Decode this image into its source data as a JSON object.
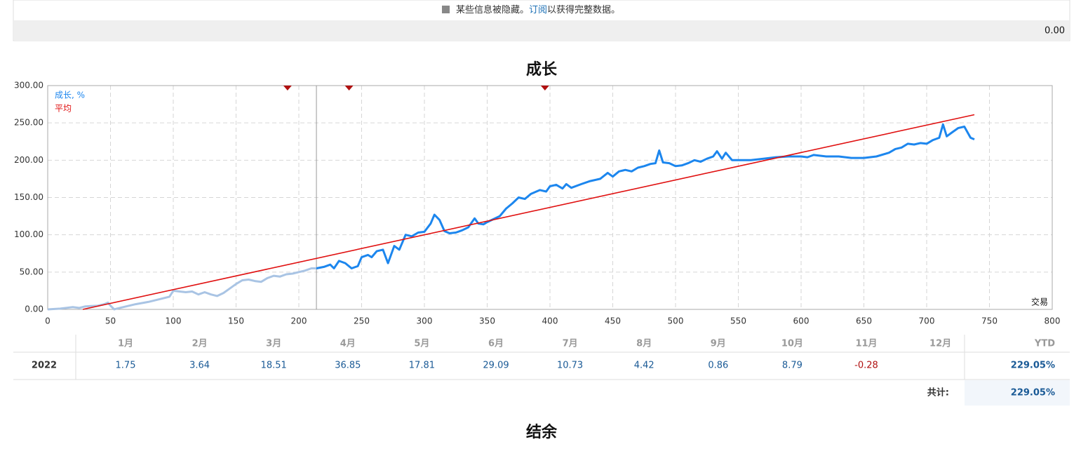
{
  "notice": {
    "before": "某些信息被隐藏。",
    "link": "订阅",
    "after": "以获得完整数据。",
    "value": "0.00"
  },
  "chart_data": {
    "type": "line",
    "title": "成长",
    "x_label": "交易",
    "xlim": [
      0,
      800
    ],
    "xticks": [
      0,
      50,
      100,
      150,
      200,
      250,
      300,
      350,
      400,
      450,
      500,
      550,
      600,
      650,
      700,
      750,
      800
    ],
    "ylim": [
      0,
      300
    ],
    "yticks": [
      {
        "value": 0,
        "label": "0.00"
      },
      {
        "value": 50,
        "label": "50.00"
      },
      {
        "value": 100,
        "label": "100.00"
      },
      {
        "value": 150,
        "label": "150.00"
      },
      {
        "value": 200,
        "label": "200.00"
      },
      {
        "value": 250,
        "label": "250.00"
      },
      {
        "value": 300,
        "label": "300.00"
      }
    ],
    "grid": true,
    "split_x": 214,
    "event_markers": [
      191,
      240,
      396
    ],
    "marker_color": "#b01010",
    "series": [
      {
        "name": "成长, %",
        "color": "#1c86ee",
        "faded_color": "#a9c4e4",
        "x": [
          0,
          10,
          20,
          25,
          30,
          40,
          45,
          48,
          50,
          53,
          55,
          60,
          70,
          80,
          90,
          97,
          100,
          105,
          110,
          115,
          120,
          125,
          130,
          135,
          140,
          145,
          150,
          155,
          160,
          165,
          170,
          175,
          180,
          185,
          190,
          195,
          200,
          205,
          210,
          214,
          220,
          225,
          228,
          232,
          237,
          242,
          247,
          250,
          255,
          258,
          262,
          267,
          271,
          276,
          280,
          285,
          290,
          295,
          300,
          305,
          308,
          312,
          316,
          320,
          325,
          330,
          335,
          340,
          343,
          347,
          350,
          360,
          365,
          370,
          375,
          380,
          385,
          392,
          397,
          400,
          405,
          410,
          413,
          417,
          425,
          432,
          440,
          446,
          450,
          455,
          460,
          465,
          470,
          475,
          480,
          484,
          487,
          490,
          495,
          500,
          505,
          510,
          515,
          520,
          525,
          530,
          533,
          537,
          540,
          545,
          550,
          560,
          570,
          580,
          590,
          600,
          605,
          610,
          620,
          630,
          640,
          650,
          660,
          670,
          675,
          680,
          685,
          690,
          695,
          700,
          705,
          710,
          713,
          716,
          720,
          725,
          730,
          735,
          738
        ],
        "values": [
          0,
          1,
          3,
          2,
          4,
          5,
          7,
          9,
          5,
          0,
          1,
          3,
          7,
          10,
          14,
          17,
          25,
          24,
          23,
          24,
          20,
          23,
          20,
          18,
          22,
          28,
          34,
          39,
          40,
          38,
          37,
          42,
          45,
          44,
          47,
          48,
          50,
          52,
          55,
          55,
          57,
          60,
          55,
          65,
          62,
          55,
          58,
          70,
          73,
          70,
          78,
          80,
          62,
          85,
          80,
          100,
          98,
          103,
          104,
          115,
          127,
          120,
          105,
          102,
          103,
          106,
          110,
          122,
          115,
          114,
          117,
          125,
          135,
          142,
          150,
          148,
          155,
          160,
          158,
          165,
          167,
          162,
          168,
          163,
          168,
          172,
          175,
          183,
          178,
          185,
          187,
          185,
          190,
          192,
          195,
          196,
          213,
          197,
          196,
          192,
          193,
          196,
          200,
          198,
          202,
          205,
          212,
          202,
          210,
          200,
          200,
          200,
          202,
          204,
          205,
          205,
          204,
          207,
          205,
          205,
          203,
          203,
          205,
          210,
          215,
          217,
          222,
          221,
          223,
          222,
          227,
          230,
          248,
          232,
          237,
          243,
          245,
          230,
          228
        ]
      },
      {
        "name": "平均",
        "color": "#e01010",
        "x": [
          28,
          738
        ],
        "values": [
          0,
          261
        ]
      }
    ]
  },
  "table": {
    "header": [
      "1月",
      "2月",
      "3月",
      "4月",
      "5月",
      "6月",
      "7月",
      "8月",
      "9月",
      "10月",
      "11月",
      "12月",
      "YTD"
    ],
    "rows": [
      {
        "year": "2022",
        "values": [
          1.75,
          3.64,
          18.51,
          36.85,
          17.81,
          29.09,
          10.73,
          4.42,
          0.86,
          8.79,
          -0.28,
          null
        ],
        "ytd": "229.05%"
      }
    ],
    "total_label": "共计:",
    "total": "229.05%"
  },
  "next_section": "结余"
}
